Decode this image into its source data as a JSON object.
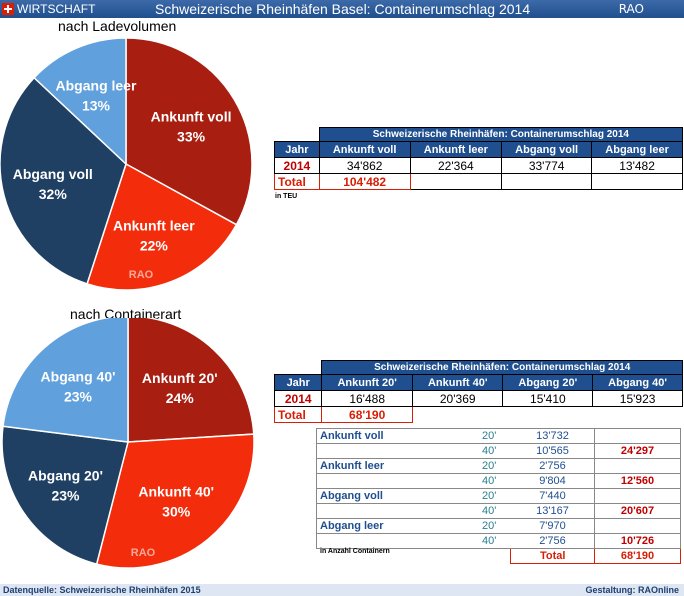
{
  "header": {
    "brand": "WIRTSCHAFT",
    "title": "Schweizerische Rheinhäfen Basel: Containerumschlag 2014",
    "rao": "RAO"
  },
  "chart_data": [
    {
      "type": "pie",
      "title": "nach Ladevolumen",
      "watermark": "RAO",
      "slices": [
        {
          "label": "Ankunft voll",
          "pct": "33%",
          "value": 33,
          "color": "#a81e11"
        },
        {
          "label": "Ankunft leer",
          "pct": "22%",
          "value": 22,
          "color": "#f32d0c"
        },
        {
          "label": "Abgang voll",
          "pct": "32%",
          "value": 32,
          "color": "#1f3f63"
        },
        {
          "label": "Abgang leer",
          "pct": "13%",
          "value": 13,
          "color": "#5fa0dd"
        }
      ]
    },
    {
      "type": "pie",
      "title": "nach Containerart",
      "watermark": "RAO",
      "slices": [
        {
          "label": "Ankunft 20'",
          "pct": "24%",
          "value": 24,
          "color": "#a81e11"
        },
        {
          "label": "Ankunft 40'",
          "pct": "30%",
          "value": 30,
          "color": "#f32d0c"
        },
        {
          "label": "Abgang 20'",
          "pct": "23%",
          "value": 23,
          "color": "#1f3f63"
        },
        {
          "label": "Abgang 40'",
          "pct": "23%",
          "value": 23,
          "color": "#5fa0dd"
        }
      ]
    }
  ],
  "table1": {
    "title": "Schweizerische Rheinhäfen: Containerumschlag 2014",
    "headers": [
      "Jahr",
      "Ankunft voll",
      "Ankunft leer",
      "Abgang voll",
      "Abgang leer"
    ],
    "row": [
      "2014",
      "34'862",
      "22'364",
      "33'774",
      "13'482"
    ],
    "total_label": "Total",
    "total_value": "104'482",
    "note": "in TEU"
  },
  "table2": {
    "title": "Schweizerische Rheinhäfen: Containerumschlag 2014",
    "headers": [
      "Jahr",
      "Ankunft 20'",
      "Ankunft 40'",
      "Abgang 20'",
      "Abgang 40'"
    ],
    "row": [
      "2014",
      "16'488",
      "20'369",
      "15'410",
      "15'923"
    ],
    "total_label": "Total",
    "total_value": "68'190"
  },
  "details": {
    "rows": [
      {
        "cat": "Ankunft voll",
        "size": "20'",
        "val": "13'732",
        "sum": ""
      },
      {
        "cat": "",
        "size": "40'",
        "val": "10'565",
        "sum": "24'297"
      },
      {
        "cat": "Ankunft leer",
        "size": "20'",
        "val": "2'756",
        "sum": ""
      },
      {
        "cat": "",
        "size": "40'",
        "val": "9'804",
        "sum": "12'560"
      },
      {
        "cat": "Abgang voll",
        "size": "20'",
        "val": "7'440",
        "sum": ""
      },
      {
        "cat": "",
        "size": "40'",
        "val": "13'167",
        "sum": "20'607"
      },
      {
        "cat": "Abgang leer",
        "size": "20'",
        "val": "7'970",
        "sum": ""
      },
      {
        "cat": "",
        "size": "40'",
        "val": "2'756",
        "sum": "10'726"
      }
    ],
    "total_label": "Total",
    "total_value": "68'190",
    "note": "in Anzahl Containern"
  },
  "footer": {
    "left": "Datenquelle: Schweizerische Rheinhäfen 2015",
    "right": "Gestaltung: RAOnline"
  }
}
